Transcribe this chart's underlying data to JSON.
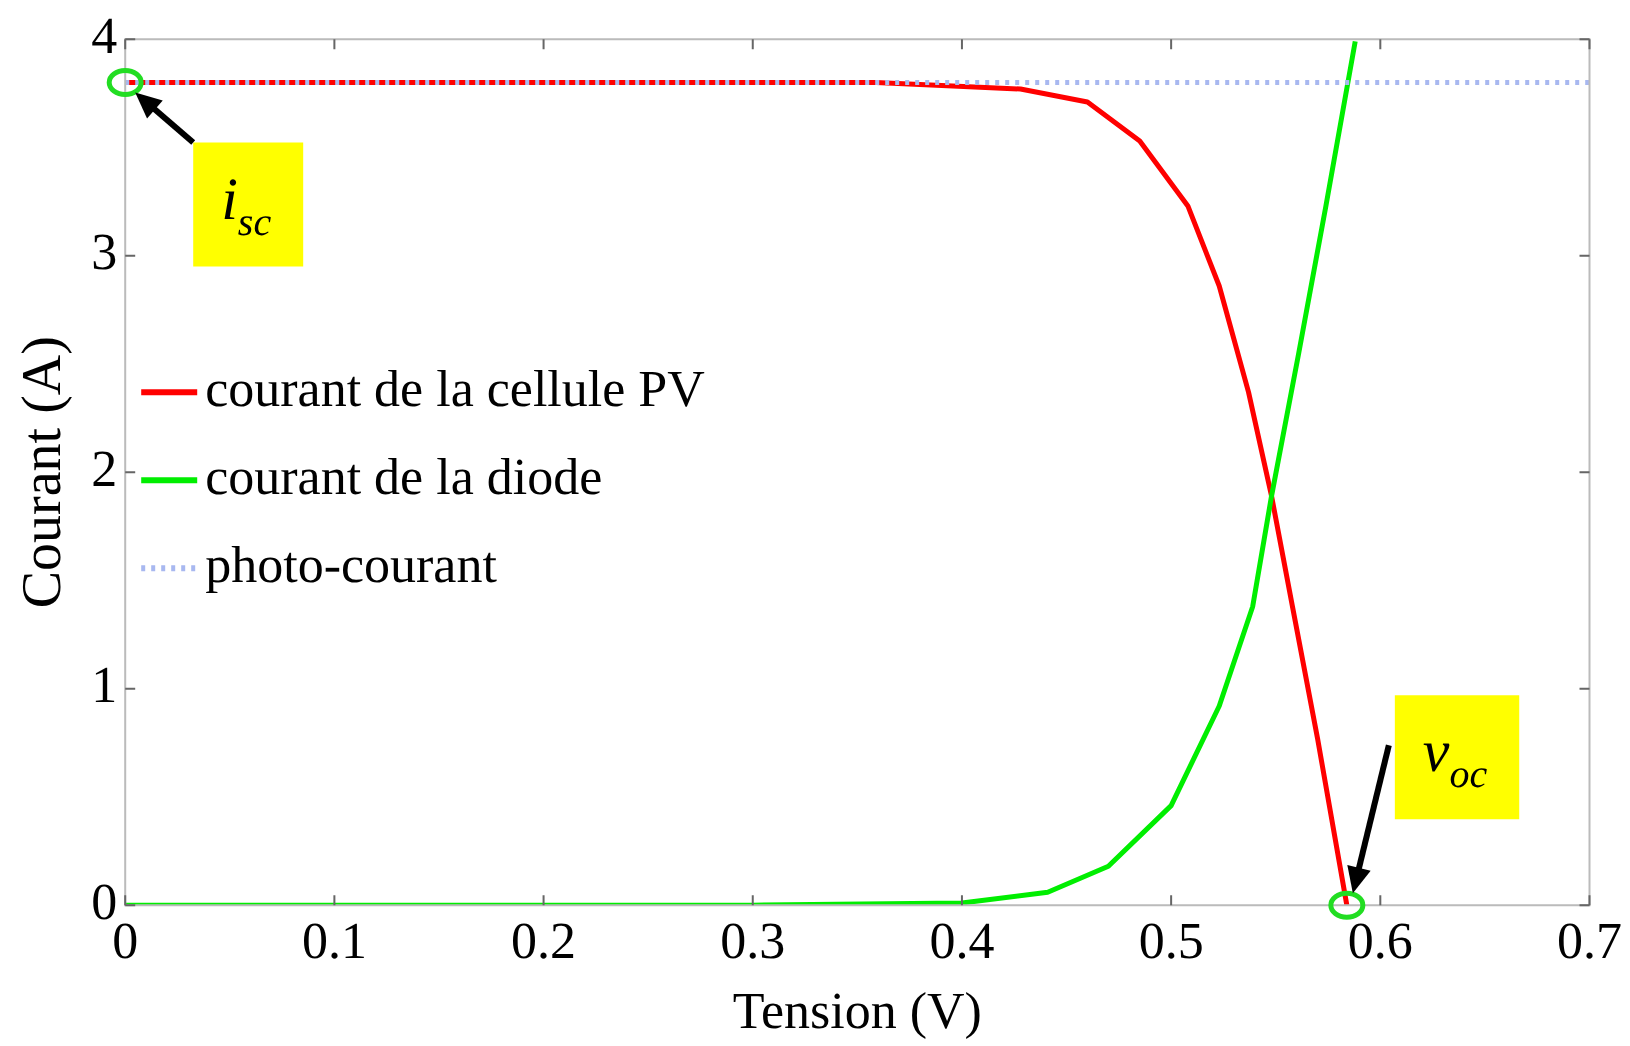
{
  "chart_data": {
    "type": "line",
    "xlabel": "Tension (V)",
    "ylabel": "Courant (A)",
    "xlim": [
      0,
      0.7
    ],
    "xticks": [
      0,
      0.1,
      0.2,
      0.3,
      0.4,
      0.5,
      0.6,
      0.7
    ],
    "ylim": [
      0,
      4
    ],
    "yticks": [
      0,
      1,
      2,
      3,
      4
    ],
    "grid": false,
    "legend": "left",
    "marker": "none",
    "series": [
      {
        "name": "courant de la cellule PV",
        "color": "#ff0000",
        "line_style": "solid",
        "x": [
          0,
          0.1,
          0.2,
          0.3,
          0.359,
          0.428,
          0.46,
          0.485,
          0.508,
          0.523,
          0.537,
          0.548,
          0.558,
          0.57,
          0.584
        ],
        "values": [
          3.8,
          3.8,
          3.8,
          3.8,
          3.8,
          3.77,
          3.71,
          3.53,
          3.23,
          2.86,
          2.37,
          1.89,
          1.38,
          0.77,
          0
        ]
      },
      {
        "name": "courant de la diode",
        "color": "#00ee00",
        "line_style": "solid",
        "x": [
          0,
          0.1,
          0.2,
          0.3,
          0.4,
          0.441,
          0.47,
          0.5,
          0.523,
          0.539,
          0.548,
          0.561,
          0.574,
          0.588
        ],
        "values": [
          0,
          0,
          0,
          0,
          0.01,
          0.06,
          0.18,
          0.46,
          0.92,
          1.38,
          1.89,
          2.55,
          3.23,
          3.99
        ]
      },
      {
        "name": "photo-courant",
        "color": "#a8b8f0",
        "line_style": "dotted",
        "x": [
          0,
          0.7
        ],
        "values": [
          3.8,
          3.8
        ]
      }
    ],
    "annotations": [
      {
        "text": "i$_{sc}$",
        "x": 0,
        "y": 3.8
      },
      {
        "text": "v$_{oc}$",
        "x": 0.584,
        "y": 0
      }
    ]
  }
}
